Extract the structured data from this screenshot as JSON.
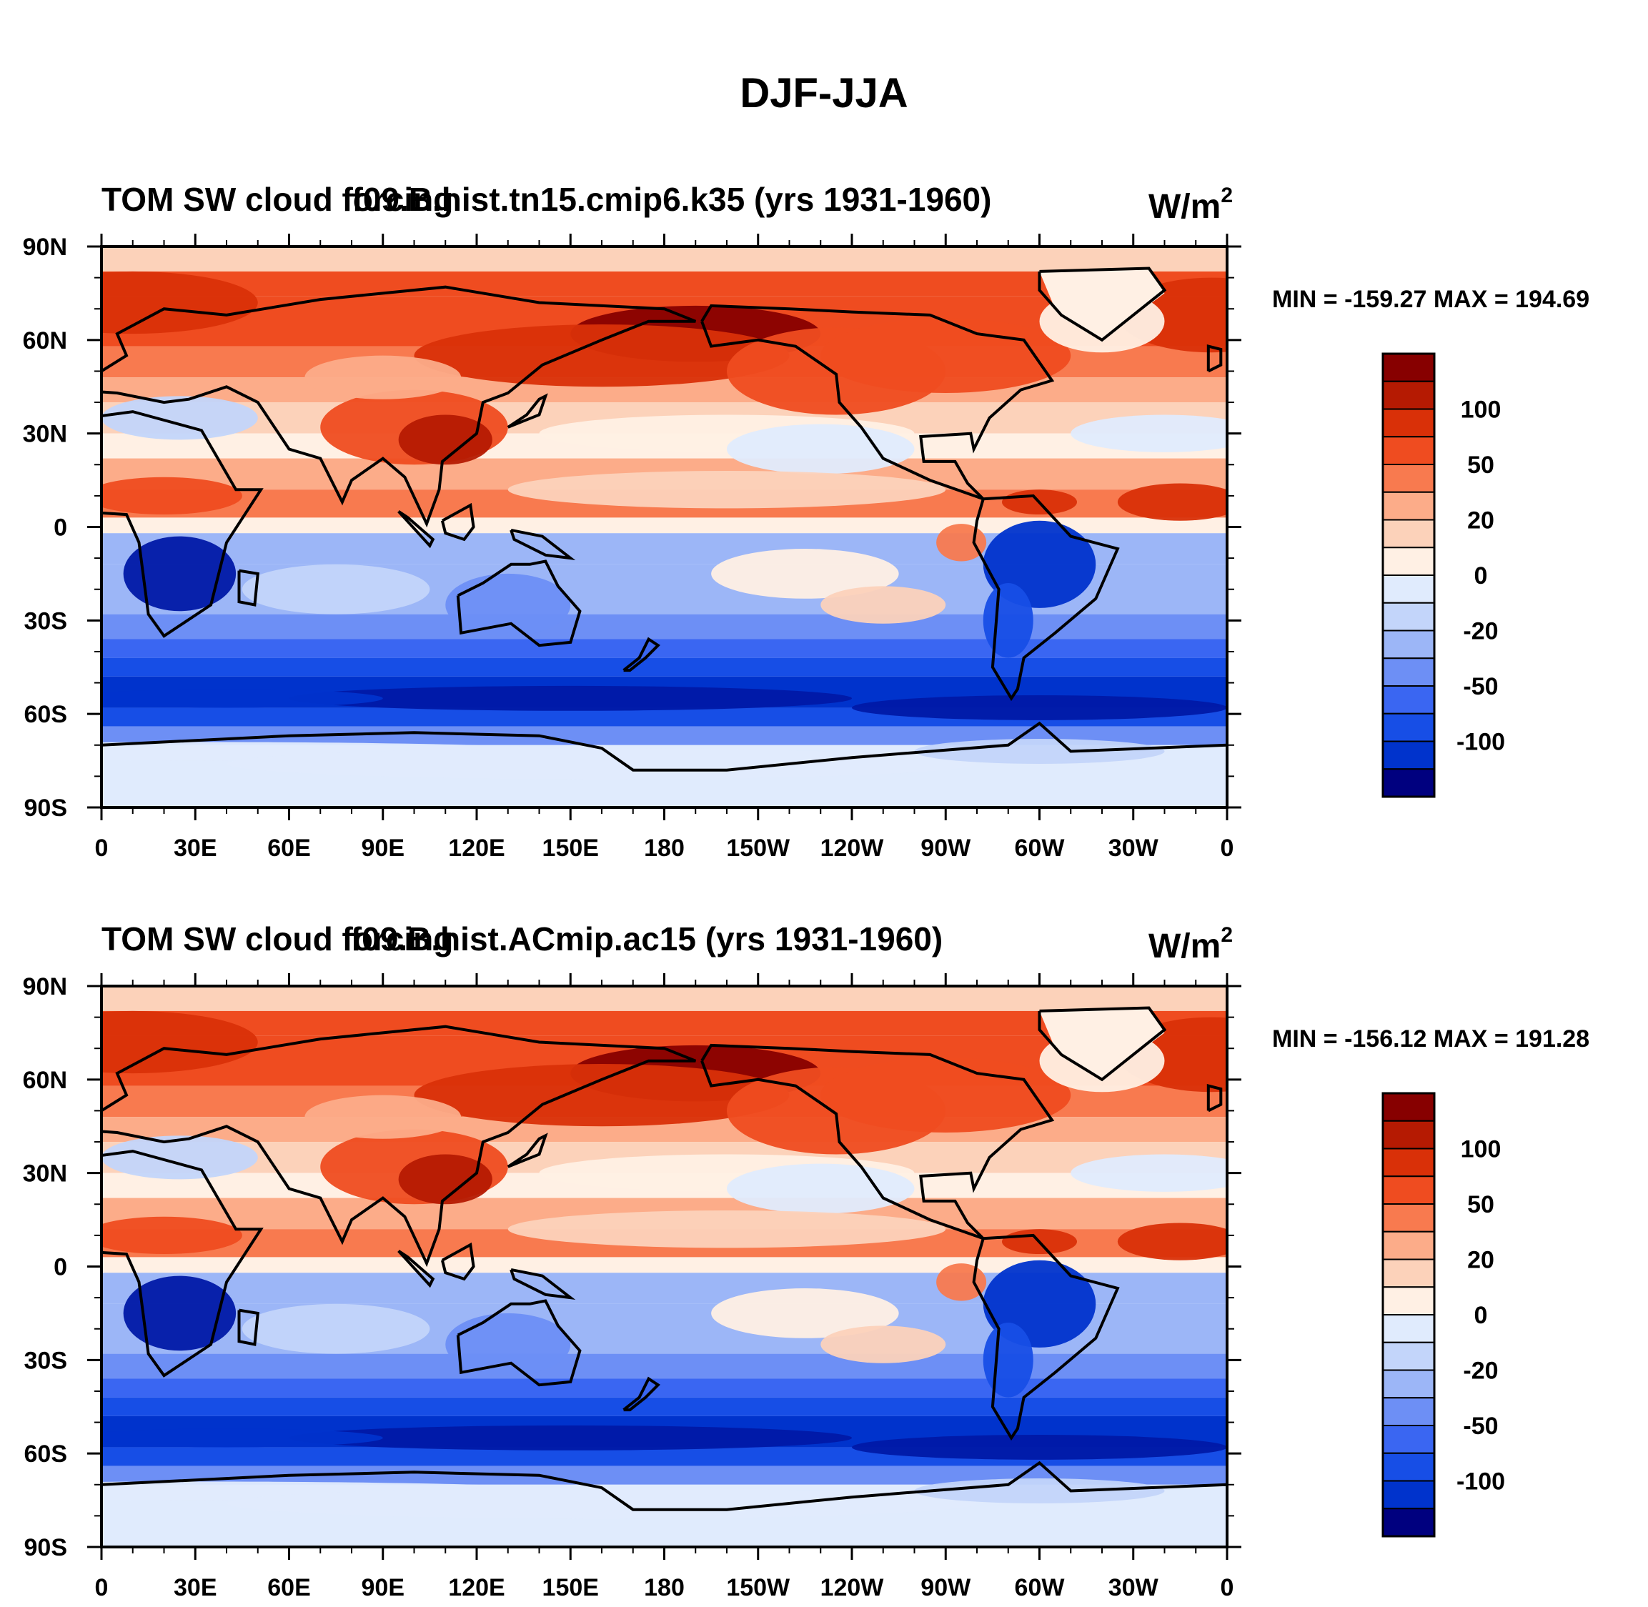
{
  "figure": {
    "title": "DJF-JJA"
  },
  "colors": {
    "levels": [
      "#00007f",
      "#0019a6",
      "#0033cc",
      "#174ee6",
      "#3a66f2",
      "#6d8ff5",
      "#9cb6f7",
      "#c3d5fa",
      "#e0ebfd",
      "#fff0e4",
      "#fcd2ba",
      "#fcac89",
      "#f87a4f",
      "#ef4c20",
      "#d93008",
      "#b51a02",
      "#870000"
    ],
    "coastline": "#000000"
  },
  "chart_data": [
    {
      "type": "contour-map",
      "title_left": "TOM SW cloud forcing",
      "title_center": "f09.B.hist.tn15.cmip6.k35 (yrs 1931-1960)",
      "units_base": "W/m",
      "units_exp": "2",
      "stats": "MIN = -159.27 MAX = 194.69",
      "min": -159.27,
      "max": 194.69,
      "y_ticks": [
        "90N",
        "60N",
        "30N",
        "0",
        "30S",
        "60S",
        "90S"
      ],
      "x_ticks": [
        "0",
        "30E",
        "60E",
        "90E",
        "120E",
        "150E",
        "180",
        "150W",
        "120W",
        "90W",
        "60W",
        "30W",
        "0"
      ],
      "colorbar_levels": [
        -120,
        -100,
        -80,
        -50,
        -40,
        -20,
        -10,
        0,
        10,
        20,
        40,
        50,
        80,
        100,
        120
      ],
      "colorbar_labels": [
        "100",
        "50",
        "20",
        "0",
        "-20",
        "-50",
        "-100"
      ]
    },
    {
      "type": "contour-map",
      "title_left": "TOM SW cloud forcing",
      "title_center": "f09.B.hist.ACmip.ac15 (yrs 1931-1960)",
      "units_base": "W/m",
      "units_exp": "2",
      "stats": "MIN = -156.12 MAX = 191.28",
      "min": -156.12,
      "max": 191.28,
      "y_ticks": [
        "90N",
        "60N",
        "30N",
        "0",
        "30S",
        "60S",
        "90S"
      ],
      "x_ticks": [
        "0",
        "30E",
        "60E",
        "90E",
        "120E",
        "150E",
        "180",
        "150W",
        "120W",
        "90W",
        "60W",
        "30W",
        "0"
      ],
      "colorbar_levels": [
        -120,
        -100,
        -80,
        -50,
        -40,
        -20,
        -10,
        0,
        10,
        20,
        40,
        50,
        80,
        100,
        120
      ],
      "colorbar_labels": [
        "100",
        "50",
        "20",
        "0",
        "-20",
        "-50",
        "-100"
      ]
    }
  ]
}
